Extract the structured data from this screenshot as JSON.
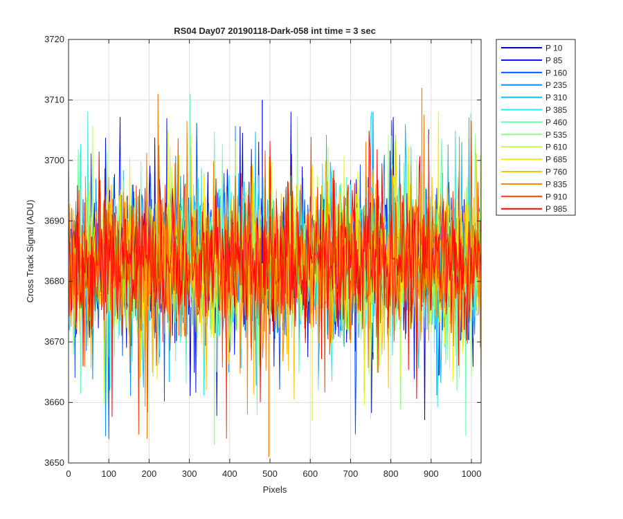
{
  "chart_data": {
    "type": "line",
    "title": "RS04 Day07 20190118-Dark-058 int time = 3 sec",
    "xlabel": "Pixels",
    "ylabel": "Cross Track Signal (ADU)",
    "xlim": [
      0,
      1024
    ],
    "ylim": [
      3650,
      3720
    ],
    "xticks": [
      0,
      100,
      200,
      300,
      400,
      500,
      600,
      700,
      800,
      900,
      1000
    ],
    "yticks": [
      3650,
      3660,
      3670,
      3680,
      3690,
      3700,
      3710,
      3720
    ],
    "grid": true,
    "legend_position": "outside-top-right",
    "series_mean": 3683,
    "series_band": [
      3671,
      3696
    ],
    "series": [
      {
        "name": "P 10",
        "color": "#0000bf"
      },
      {
        "name": "P 85",
        "color": "#0010ef"
      },
      {
        "name": "P 160",
        "color": "#0050ff"
      },
      {
        "name": "P 235",
        "color": "#0090ff"
      },
      {
        "name": "P 310",
        "color": "#00c0ff"
      },
      {
        "name": "P 385",
        "color": "#20f0f0"
      },
      {
        "name": "P 460",
        "color": "#60ffb0"
      },
      {
        "name": "P 535",
        "color": "#90ff80"
      },
      {
        "name": "P 610",
        "color": "#c0ff40"
      },
      {
        "name": "P 685",
        "color": "#f0f000"
      },
      {
        "name": "P 760",
        "color": "#ffc000"
      },
      {
        "name": "P 835",
        "color": "#ff8000"
      },
      {
        "name": "P 910",
        "color": "#ff4000"
      },
      {
        "name": "P 985",
        "color": "#ff0000"
      }
    ],
    "notable_points": [
      {
        "x": 222,
        "y": 3711,
        "color": "#ff8000"
      },
      {
        "x": 302,
        "y": 3711,
        "color": "#60ffb0"
      },
      {
        "x": 877,
        "y": 3712,
        "color": "#ff8000"
      },
      {
        "x": 497,
        "y": 3651,
        "color": "#ff8000"
      },
      {
        "x": 195,
        "y": 3654,
        "color": "#ff8000"
      },
      {
        "x": 362,
        "y": 3653,
        "color": "#90ff80"
      },
      {
        "x": 481,
        "y": 3710,
        "color": "#0010ef"
      },
      {
        "x": 605,
        "y": 3657,
        "color": "#f0f000"
      }
    ]
  }
}
